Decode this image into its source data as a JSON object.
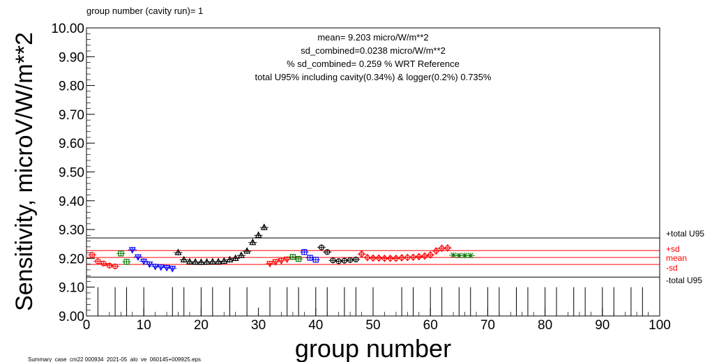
{
  "chart_data": {
    "type": "scatter",
    "header": "group number (cavity run)=  1",
    "footer": "Summary_case_cm22 000934_2021-05_alo_ve_060145+009925.eps",
    "xlabel": "group number",
    "ylabel": "Sensitivity, microV/W/m**2",
    "xlim": [
      0,
      100
    ],
    "ylim": [
      9.0,
      10.0
    ],
    "x_ticks": [
      0,
      10,
      20,
      30,
      40,
      50,
      60,
      70,
      80,
      90,
      100
    ],
    "y_ticks": [
      {
        "value": 9.0,
        "label": "9.00"
      },
      {
        "value": 9.1,
        "label": "9.10"
      },
      {
        "value": 9.2,
        "label": "9.20"
      },
      {
        "value": 9.3,
        "label": "9.30"
      },
      {
        "value": 9.4,
        "label": "9.40"
      },
      {
        "value": 9.5,
        "label": "9.50"
      },
      {
        "value": 9.6,
        "label": "9.60"
      },
      {
        "value": 9.7,
        "label": "9.70"
      },
      {
        "value": 9.8,
        "label": "9.80"
      },
      {
        "value": 9.9,
        "label": "9.90"
      },
      {
        "value": 10.0,
        "label": "10.00"
      }
    ],
    "annotations": [
      "mean= 9.203 micro/W/m**2",
      "sd_combined=0.0238 micro/W/m**2",
      "% sd_combined= 0.259 % WRT Reference",
      "total U95% including cavity(0.34%) & logger(0.2%) 0.735%"
    ],
    "reference_lines": [
      {
        "label": "+total U95",
        "value": 9.271,
        "color": "#000000"
      },
      {
        "label": "+sd",
        "value": 9.227,
        "color": "#ff0000"
      },
      {
        "label": "mean",
        "value": 9.203,
        "color": "#ff0000"
      },
      {
        "label": "-sd",
        "value": 9.179,
        "color": "#ff0000"
      },
      {
        "label": "-total U95",
        "value": 9.135,
        "color": "#000000"
      }
    ],
    "group_markers": [
      2,
      5,
      7,
      10,
      15,
      17,
      20,
      22,
      25,
      28,
      32,
      35,
      37,
      40,
      42,
      45,
      47,
      50,
      55,
      57,
      60,
      62,
      65,
      67,
      70,
      72,
      75,
      77,
      80,
      82,
      85,
      87,
      90,
      92,
      95,
      97
    ],
    "series": [
      {
        "marker": "circle",
        "color": "#ff0000",
        "x": [
          1,
          2,
          3,
          4,
          5
        ],
        "y": [
          9.212,
          9.19,
          9.182,
          9.175,
          9.172
        ]
      },
      {
        "marker": "square",
        "color": "#007700",
        "x": [
          6,
          7
        ],
        "y": [
          9.217,
          9.188
        ]
      },
      {
        "marker": "triangle-down",
        "color": "#0000ff",
        "x": [
          8,
          9,
          10,
          11,
          12,
          13,
          14,
          15
        ],
        "y": [
          9.23,
          9.205,
          9.19,
          9.18,
          9.172,
          9.17,
          9.168,
          9.165
        ]
      },
      {
        "marker": "triangle",
        "color": "#000000",
        "x": [
          16,
          17,
          18,
          19,
          20,
          21,
          22,
          23,
          24,
          25,
          26,
          27,
          28,
          29,
          30,
          31
        ],
        "y": [
          9.22,
          9.195,
          9.188,
          9.187,
          9.186,
          9.187,
          9.188,
          9.188,
          9.19,
          9.195,
          9.2,
          9.21,
          9.225,
          9.255,
          9.28,
          9.307
        ]
      },
      {
        "marker": "triangle-down",
        "color": "#ff0000",
        "x": [
          32,
          33,
          34,
          35
        ],
        "y": [
          9.182,
          9.188,
          9.192,
          9.197
        ]
      },
      {
        "marker": "square",
        "color": "#007700",
        "x": [
          36,
          37
        ],
        "y": [
          9.205,
          9.198
        ]
      },
      {
        "marker": "square",
        "color": "#0000ff",
        "x": [
          38,
          39,
          40
        ],
        "y": [
          9.222,
          9.202,
          9.195
        ]
      },
      {
        "marker": "circle",
        "color": "#000000",
        "x": [
          41,
          42,
          43,
          44,
          45,
          46,
          47
        ],
        "y": [
          9.238,
          9.222,
          9.193,
          9.19,
          9.192,
          9.194,
          9.196
        ]
      },
      {
        "marker": "diamond",
        "color": "#ff0000",
        "x": [
          48,
          49,
          50,
          51,
          52,
          53,
          54,
          55,
          56,
          57,
          58,
          59,
          60,
          61,
          62,
          63
        ],
        "y": [
          9.215,
          9.203,
          9.201,
          9.201,
          9.2,
          9.2,
          9.2,
          9.202,
          9.203,
          9.204,
          9.206,
          9.208,
          9.212,
          9.226,
          9.235,
          9.236
        ]
      },
      {
        "marker": "star",
        "color": "#007700",
        "x": [
          64,
          65,
          66,
          67
        ],
        "y": [
          9.211,
          9.21,
          9.21,
          9.21
        ]
      }
    ]
  }
}
